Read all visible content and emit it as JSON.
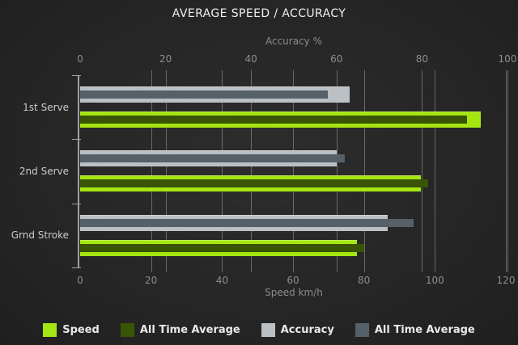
{
  "title": "AVERAGE SPEED / ACCURACY",
  "chart_data": {
    "type": "bar",
    "orientation": "horizontal",
    "categories": [
      "1st Serve",
      "2nd Serve",
      "Grnd Stroke"
    ],
    "series": [
      {
        "name": "Speed",
        "axis": "bottom",
        "values": [
          113,
          96,
          78
        ],
        "color": "#A4E612"
      },
      {
        "name": "All Time Average",
        "axis": "bottom",
        "values": [
          109,
          98,
          80
        ],
        "color": "#3A5406"
      },
      {
        "name": "Accuracy",
        "axis": "top",
        "values": [
          63,
          60,
          72
        ],
        "color": "#BAC0C4"
      },
      {
        "name": "All Time Average",
        "axis": "top",
        "values": [
          58,
          62,
          78
        ],
        "color": "#566069"
      }
    ],
    "axes": {
      "top": {
        "label": "Accuracy %",
        "min": 0,
        "max": 100,
        "ticks": [
          0,
          20,
          40,
          60,
          80,
          100
        ]
      },
      "bottom": {
        "label": "Speed km/h",
        "min": 0,
        "max": 120,
        "ticks": [
          0,
          20,
          40,
          60,
          80,
          100,
          120
        ]
      }
    },
    "legend": [
      {
        "label": "Speed",
        "color": "#A4E612"
      },
      {
        "label": "All Time Average",
        "color": "#3A5406"
      },
      {
        "label": "Accuracy",
        "color": "#BAC0C4"
      },
      {
        "label": "All Time Average",
        "color": "#566069"
      }
    ],
    "grid": true,
    "legend_position": "bottom"
  }
}
